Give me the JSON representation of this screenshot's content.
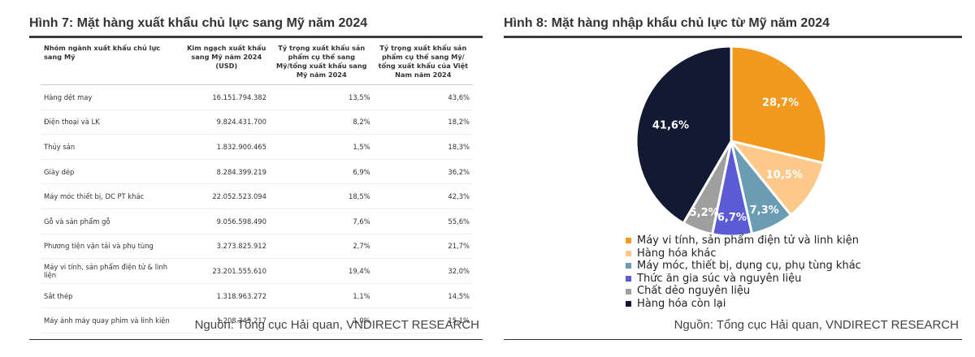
{
  "left": {
    "title": "Hình 7: Mặt hàng xuất khẩu chủ lực sang Mỹ năm 2024",
    "source": "Nguồn: Tổng cục Hải quan, VNDIRECT RESEARCH",
    "table": {
      "headers": [
        "Nhóm ngành xuất khẩu chủ lực sang Mỹ",
        "Kim ngạch xuất khẩu sang Mỹ năm 2024 (USD)",
        "Tỷ trọng xuất khẩu sản phẩm cụ thể sang Mỹ/tổng xuất khẩu sang Mỹ năm 2024",
        "Tỷ trọng xuất khẩu sản phẩm cụ thể sang Mỹ/ tổng xuất khẩu của Việt Nam năm 2024"
      ],
      "rows": [
        [
          "Hàng dệt may",
          "16.151.794.382",
          "13,5%",
          "43,6%"
        ],
        [
          "Điện thoại và LK",
          "9.824.431.700",
          "8,2%",
          "18,2%"
        ],
        [
          "Thủy sản",
          "1.832.900.465",
          "1,5%",
          "18,3%"
        ],
        [
          "Giày dép",
          "8.284.399.219",
          "6,9%",
          "36,2%"
        ],
        [
          "Máy móc thiết bị, DC PT khác",
          "22.052.523.094",
          "18,5%",
          "42,3%"
        ],
        [
          "Gỗ và sản phẩm gỗ",
          "9.056.598.490",
          "7,6%",
          "55,6%"
        ],
        [
          "Phương tiện vận tải và phụ tùng",
          "3.273.825.912",
          "2,7%",
          "21,7%"
        ],
        [
          "Máy vi tính, sản phẩm điện tử & linh liện",
          "23.201.555.610",
          "19,4%",
          "32,0%"
        ],
        [
          "Sắt thép",
          "1.318.963.272",
          "1,1%",
          "14,5%"
        ],
        [
          "Máy ảnh máy quay phim và linh kiện",
          "1.208.345.217",
          "1,0%",
          "15,1%"
        ]
      ]
    }
  },
  "right": {
    "title": "Hình 8: Mặt hàng nhập khẩu chủ lực từ Mỹ năm 2024",
    "source": "Nguồn:  Tổng cục Hải quan, VNDIRECT RESEARCH"
  },
  "chart_data": [
    {
      "type": "table",
      "title": "Hình 7: Mặt hàng xuất khẩu chủ lực sang Mỹ năm 2024",
      "columns": [
        "Nhóm ngành xuất khẩu chủ lực sang Mỹ",
        "Kim ngạch xuất khẩu sang Mỹ năm 2024 (USD)",
        "Tỷ trọng xuất khẩu sản phẩm cụ thể sang Mỹ/tổng xuất khẩu sang Mỹ năm 2024",
        "Tỷ trọng xuất khẩu sản phẩm cụ thể sang Mỹ/ tổng xuất khẩu của Việt Nam năm 2024"
      ],
      "rows": [
        [
          "Hàng dệt may",
          "16.151.794.382",
          "13,5%",
          "43,6%"
        ],
        [
          "Điện thoại và LK",
          "9.824.431.700",
          "8,2%",
          "18,2%"
        ],
        [
          "Thủy sản",
          "1.832.900.465",
          "1,5%",
          "18,3%"
        ],
        [
          "Giày dép",
          "8.284.399.219",
          "6,9%",
          "36,2%"
        ],
        [
          "Máy móc thiết bị, DC PT khác",
          "22.052.523.094",
          "18,5%",
          "42,3%"
        ],
        [
          "Gỗ và sản phẩm gỗ",
          "9.056.598.490",
          "7,6%",
          "55,6%"
        ],
        [
          "Phương tiện vận tải và phụ tùng",
          "3.273.825.912",
          "2,7%",
          "21,7%"
        ],
        [
          "Máy vi tính, sản phẩm điện tử & linh liện",
          "23.201.555.610",
          "19,4%",
          "32,0%"
        ],
        [
          "Sắt thép",
          "1.318.963.272",
          "1,1%",
          "14,5%"
        ],
        [
          "Máy ảnh máy quay phim và linh kiện",
          "1.208.345.217",
          "1,0%",
          "15,1%"
        ]
      ]
    },
    {
      "type": "pie",
      "title": "Hình 8: Mặt hàng nhập khẩu chủ lực từ Mỹ năm 2024",
      "legend_position": "bottom",
      "slices": [
        {
          "label": "Máy vi tính, sản phẩm điện tử và linh kiện",
          "value": 28.7,
          "display": "28,7%",
          "color": "#f39a1e"
        },
        {
          "label": "Hàng hóa khác",
          "value": 10.5,
          "display": "10,5%",
          "color": "#fcc98a"
        },
        {
          "label": "Máy móc, thiết bị, dụng cụ, phụ tùng khác",
          "value": 7.3,
          "display": "7,3%",
          "color": "#6a9db3"
        },
        {
          "label": "Thức ăn gia súc và nguyên liệu",
          "value": 6.7,
          "display": "6,7%",
          "color": "#5b5bd6"
        },
        {
          "label": "Chất dẻo nguyên liệu",
          "value": 5.2,
          "display": "5,2%",
          "color": "#9f9f9f"
        },
        {
          "label": "Hàng hóa còn lại",
          "value": 41.6,
          "display": "41,6%",
          "color": "#121a33"
        }
      ]
    }
  ]
}
